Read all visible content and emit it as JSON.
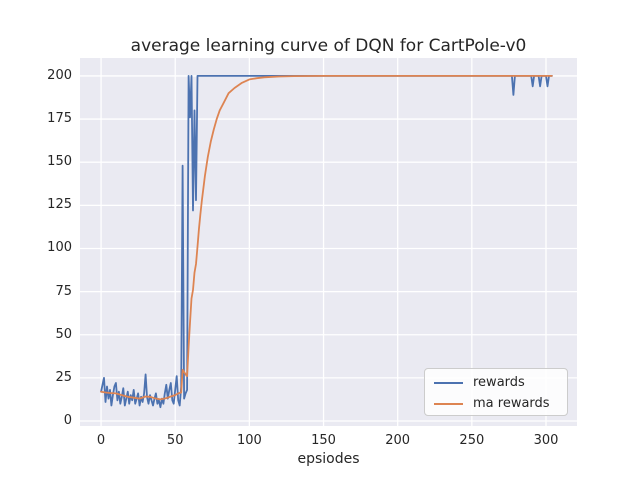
{
  "figure": {
    "title": "average learning curve of DQN for CartPole-v0",
    "xlabel": "epsiodes",
    "background_color": "#ffffff",
    "axes_background_color": "#eaeaf2",
    "grid_color": "#ffffff",
    "text_color": "#262626"
  },
  "legend": {
    "position": "lower right",
    "entries": [
      {
        "label": "rewards",
        "color": "#4c72b0"
      },
      {
        "label": "ma rewards",
        "color": "#dd8452"
      }
    ]
  },
  "chart_data": {
    "type": "line",
    "title": "average learning curve of DQN for CartPole-v0",
    "xlabel": "epsiodes",
    "ylabel": "",
    "grid": true,
    "legend_position": "lower right",
    "xlim": [
      -14.2,
      320.9
    ],
    "ylim": [
      -2.9,
      210.4
    ],
    "x_ticks": [
      0,
      50,
      100,
      150,
      200,
      250,
      300
    ],
    "y_ticks": [
      0,
      25,
      50,
      75,
      100,
      125,
      150,
      175,
      200
    ],
    "line_width": 1.8,
    "series": [
      {
        "name": "rewards",
        "color": "#4c72b0",
        "points": [
          [
            0,
            17
          ],
          [
            1,
            21
          ],
          [
            2,
            25
          ],
          [
            3,
            11
          ],
          [
            4,
            20
          ],
          [
            5,
            13
          ],
          [
            6,
            18
          ],
          [
            7,
            9
          ],
          [
            8,
            15
          ],
          [
            9,
            20
          ],
          [
            10,
            22
          ],
          [
            11,
            12
          ],
          [
            12,
            17
          ],
          [
            13,
            10
          ],
          [
            14,
            14
          ],
          [
            15,
            19
          ],
          [
            16,
            9
          ],
          [
            17,
            13
          ],
          [
            18,
            17
          ],
          [
            19,
            10
          ],
          [
            20,
            15
          ],
          [
            21,
            12
          ],
          [
            22,
            18
          ],
          [
            23,
            10
          ],
          [
            24,
            13
          ],
          [
            25,
            16
          ],
          [
            26,
            9
          ],
          [
            27,
            14
          ],
          [
            28,
            11
          ],
          [
            29,
            16
          ],
          [
            30,
            27
          ],
          [
            31,
            14
          ],
          [
            32,
            10
          ],
          [
            33,
            15
          ],
          [
            34,
            12
          ],
          [
            35,
            9
          ],
          [
            36,
            13
          ],
          [
            37,
            16
          ],
          [
            38,
            10
          ],
          [
            39,
            12
          ],
          [
            40,
            8
          ],
          [
            41,
            13
          ],
          [
            42,
            10
          ],
          [
            43,
            16
          ],
          [
            44,
            21
          ],
          [
            45,
            13
          ],
          [
            46,
            18
          ],
          [
            47,
            22
          ],
          [
            48,
            12
          ],
          [
            49,
            10
          ],
          [
            50,
            18
          ],
          [
            51,
            26
          ],
          [
            52,
            12
          ],
          [
            53,
            9
          ],
          [
            54,
            20
          ],
          [
            55,
            148
          ],
          [
            56,
            13
          ],
          [
            57,
            16
          ],
          [
            58,
            18
          ],
          [
            59,
            200
          ],
          [
            60,
            176
          ],
          [
            61,
            200
          ],
          [
            62,
            122
          ],
          [
            63,
            180
          ],
          [
            64,
            128
          ],
          [
            65,
            200
          ],
          [
            277,
            200
          ],
          [
            278,
            189
          ],
          [
            279,
            200
          ],
          [
            290,
            200
          ],
          [
            291,
            194
          ],
          [
            292,
            200
          ],
          [
            295,
            200
          ],
          [
            296,
            194
          ],
          [
            297,
            200
          ],
          [
            300,
            200
          ],
          [
            301,
            194
          ],
          [
            302,
            200
          ],
          [
            304,
            200
          ]
        ]
      },
      {
        "name": "ma rewards",
        "color": "#dd8452",
        "points": [
          [
            0,
            17
          ],
          [
            3,
            16.5
          ],
          [
            6,
            16.2
          ],
          [
            10,
            16
          ],
          [
            14,
            15
          ],
          [
            18,
            14
          ],
          [
            22,
            13.5
          ],
          [
            26,
            13
          ],
          [
            30,
            14.2
          ],
          [
            33,
            14
          ],
          [
            36,
            13.2
          ],
          [
            40,
            12.5
          ],
          [
            44,
            13.3
          ],
          [
            47,
            14.2
          ],
          [
            50,
            15
          ],
          [
            52,
            16
          ],
          [
            54,
            16.5
          ],
          [
            55,
            29.7
          ],
          [
            57,
            27
          ],
          [
            58,
            26
          ],
          [
            59,
            43
          ],
          [
            60,
            57
          ],
          [
            61,
            71
          ],
          [
            62,
            76
          ],
          [
            63,
            86
          ],
          [
            64,
            91
          ],
          [
            65,
            101
          ],
          [
            66,
            111
          ],
          [
            67,
            120
          ],
          [
            68,
            128
          ],
          [
            69,
            135
          ],
          [
            70,
            142
          ],
          [
            72,
            153
          ],
          [
            74,
            162
          ],
          [
            76,
            169
          ],
          [
            78,
            175
          ],
          [
            80,
            180
          ],
          [
            83,
            185
          ],
          [
            86,
            190
          ],
          [
            90,
            193
          ],
          [
            95,
            196
          ],
          [
            100,
            198
          ],
          [
            105,
            198.7
          ],
          [
            110,
            199.2
          ],
          [
            120,
            199.7
          ],
          [
            130,
            199.9
          ],
          [
            150,
            200
          ],
          [
            200,
            200
          ],
          [
            250,
            200
          ],
          [
            304,
            200
          ]
        ]
      }
    ]
  }
}
